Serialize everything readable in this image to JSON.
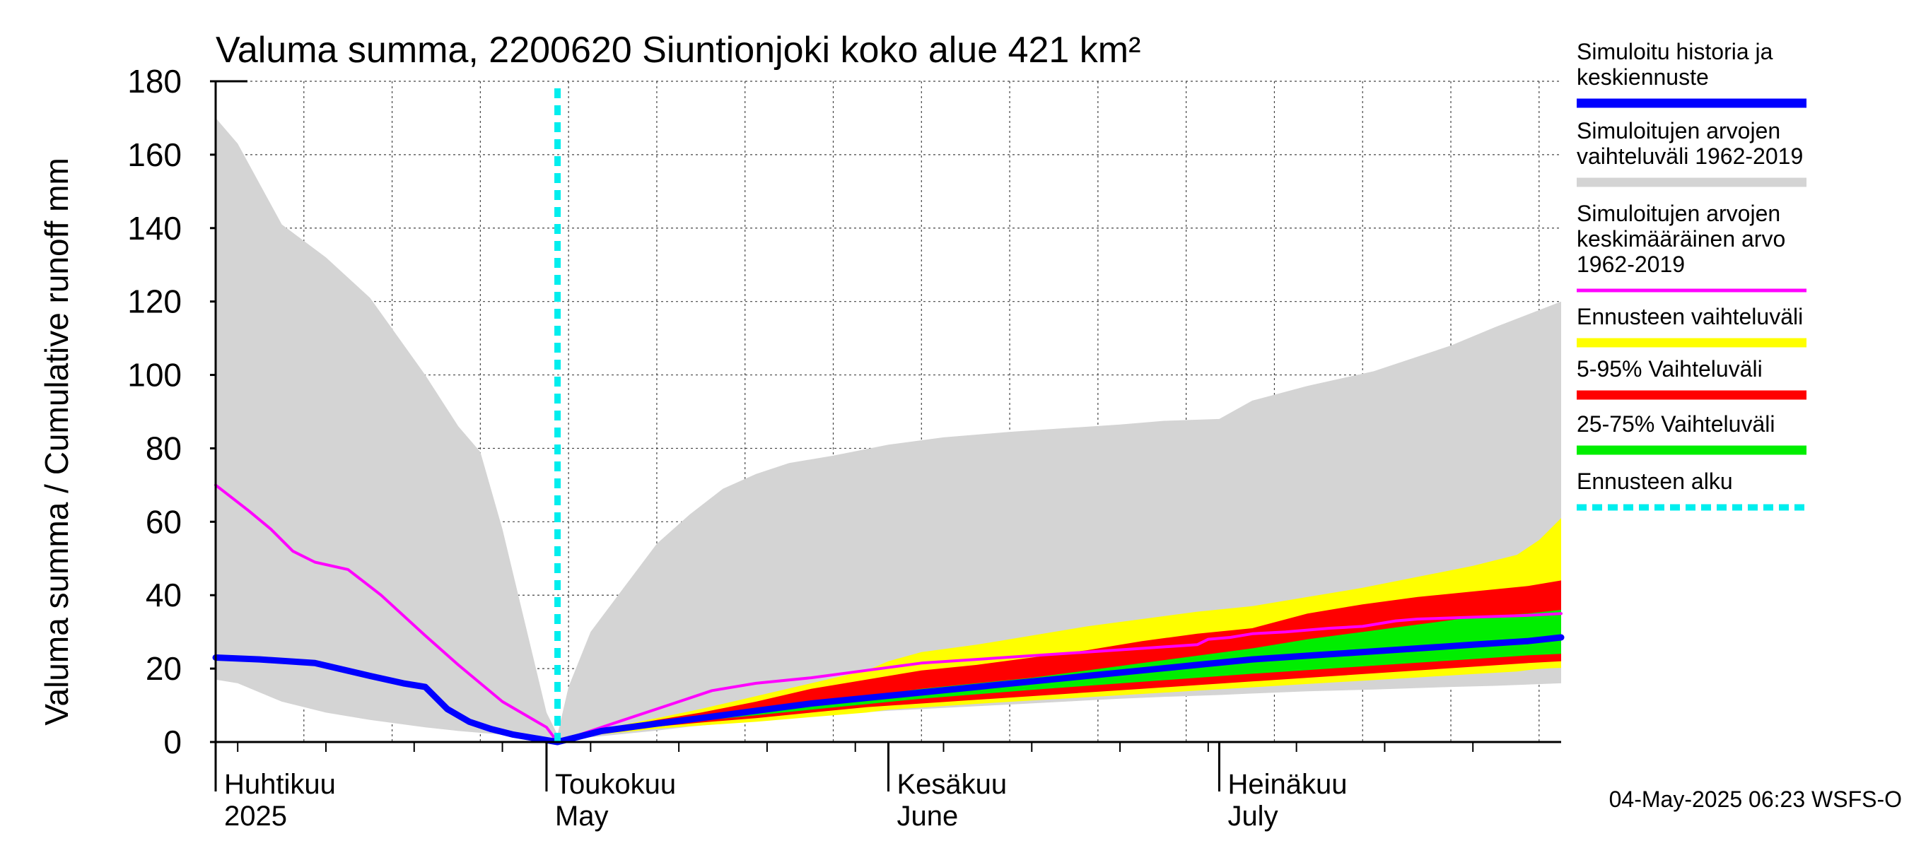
{
  "chart_data": {
    "type": "area",
    "title": "Valuma summa, 2200620 Siuntionjoki koko alue 421 km²",
    "ylabel": "Valuma summa / Cumulative runoff    mm",
    "ylim": [
      0,
      180
    ],
    "yticks": [
      0,
      20,
      40,
      60,
      80,
      100,
      120,
      140,
      160,
      180
    ],
    "x_unit": "day of year 2025",
    "xlim": [
      91,
      213
    ],
    "forecast_start": 122,
    "month_labels": [
      {
        "day": 91,
        "line1": "Huhtikuu",
        "line2": "2025"
      },
      {
        "day": 121,
        "line1": "Toukokuu",
        "line2": "May"
      },
      {
        "day": 152,
        "line1": "Kesäkuu",
        "line2": "June"
      },
      {
        "day": 182,
        "line1": "Heinäkuu",
        "line2": "July"
      }
    ],
    "colors": {
      "history": "#0000ff",
      "range": "#d4d4d4",
      "mean": "#ff00ff",
      "forecast_range": "#ffff00",
      "p5_95": "#ff0000",
      "p25_75": "#00ee00",
      "forecast_start": "#00eeee"
    },
    "bands": [
      {
        "name": "Simuloitujen arvojen vaihteluväli 1962-2019",
        "color_key": "range",
        "x": [
          91,
          93,
          97,
          101,
          105,
          110,
          113,
          115,
          117,
          119,
          121,
          122,
          123,
          125,
          128,
          131,
          134,
          137,
          140,
          143,
          147,
          152,
          157,
          163,
          168,
          173,
          177,
          182,
          185,
          190,
          196,
          203,
          207,
          213
        ],
        "upper": [
          170,
          163,
          141,
          132,
          121,
          100,
          86,
          79,
          58,
          33,
          8,
          2,
          15,
          30,
          42,
          54,
          62,
          69,
          73,
          76,
          78,
          81,
          83,
          84.5,
          85.5,
          86.5,
          87.5,
          88,
          93,
          97,
          101,
          108,
          113,
          120
        ],
        "lower": [
          17,
          16,
          11,
          8,
          6,
          4,
          3,
          2.5,
          2,
          1.2,
          0.5,
          0.2,
          0.7,
          1.3,
          2.2,
          3.1,
          4.2,
          5,
          5.8,
          6.6,
          7.5,
          8.5,
          9.3,
          10.2,
          11,
          11.8,
          12.3,
          12.8,
          13.2,
          13.8,
          14.3,
          15,
          15.3,
          16
        ]
      },
      {
        "name": "Ennusteen vaihteluväli",
        "color_key": "forecast_range",
        "x": [
          122,
          126,
          131,
          135,
          140,
          145,
          150,
          152,
          155,
          160,
          165,
          170,
          175,
          180,
          185,
          190,
          195,
          200,
          205,
          209,
          210,
          211,
          212,
          213
        ],
        "upper": [
          0.6,
          3.5,
          6.5,
          9,
          12.5,
          16,
          19.5,
          22,
          24.5,
          26.5,
          29,
          31.5,
          33.5,
          35.5,
          37,
          39.5,
          42,
          45,
          48,
          51,
          53,
          55,
          58,
          61
        ],
        "lower": [
          0,
          2.1,
          3.6,
          4.5,
          5.5,
          6.8,
          8,
          8.8,
          9.4,
          10.4,
          11.3,
          12.2,
          13.1,
          14,
          14.9,
          15.8,
          16.7,
          17.6,
          18.5,
          19.2,
          19.6,
          19.9,
          20.1,
          20.2
        ]
      },
      {
        "name": "5-95% Vaihteluväli",
        "color_key": "p5_95",
        "x": [
          122,
          126,
          131,
          135,
          140,
          145,
          150,
          155,
          160,
          165,
          170,
          175,
          180,
          185,
          190,
          195,
          200,
          205,
          210,
          213
        ],
        "upper": [
          0.3,
          3.3,
          6,
          8,
          11,
          14.5,
          17,
          19.5,
          21,
          23,
          25,
          27.5,
          29.5,
          31,
          35,
          37.5,
          39.5,
          41,
          42.5,
          44
        ],
        "lower": [
          0.05,
          2.5,
          4.2,
          5.3,
          6.5,
          8,
          9.5,
          10.5,
          11.5,
          12.5,
          13.5,
          14.5,
          15.5,
          16.5,
          17.5,
          18.5,
          19.5,
          20.5,
          21.5,
          22
        ]
      },
      {
        "name": "25-75% Vaihteluväli",
        "color_key": "p25_75",
        "x": [
          122,
          126,
          131,
          135,
          140,
          145,
          150,
          155,
          160,
          165,
          170,
          175,
          180,
          185,
          190,
          195,
          200,
          205,
          210,
          213
        ],
        "upper": [
          0.2,
          2.8,
          5,
          6.5,
          8.5,
          10.5,
          12.5,
          14.5,
          16,
          17.5,
          19.5,
          21.5,
          23.5,
          25.5,
          28,
          30,
          32,
          34,
          35,
          36
        ],
        "lower": [
          0.1,
          2.6,
          4.5,
          5.8,
          7.3,
          8.8,
          10.3,
          11.8,
          13,
          14.2,
          15.3,
          16.4,
          17.5,
          18.6,
          19.6,
          20.6,
          21.6,
          22.6,
          23.6,
          24
        ]
      }
    ],
    "series": [
      {
        "name": "Simuloitujen arvojen keskimääräinen arvo 1962-2019",
        "color_key": "mean",
        "width": 4,
        "x": [
          91,
          94,
          96,
          98,
          100,
          103,
          106,
          110,
          113,
          117,
          121,
          122,
          124,
          128,
          132,
          136,
          140,
          145,
          150,
          155,
          160,
          165,
          170,
          175,
          180,
          181,
          183,
          185,
          188,
          192,
          195,
          198,
          200,
          205,
          210,
          213
        ],
        "values": [
          70,
          63,
          58,
          52,
          49,
          47,
          40,
          29,
          21,
          11,
          4,
          0,
          2,
          6,
          10,
          14,
          16,
          17.5,
          19.5,
          21.5,
          22.5,
          23.5,
          24.5,
          25.5,
          26.5,
          28,
          28.5,
          29.5,
          30,
          31,
          31.5,
          33,
          33.5,
          34,
          34.5,
          35
        ]
      },
      {
        "name": "Simuloitu historia ja keskiennuste",
        "color_key": "history",
        "width": 9,
        "x": [
          91,
          95,
          100,
          105,
          108,
          110,
          112,
          114,
          116,
          118,
          120,
          122,
          126,
          131,
          135,
          140,
          145,
          150,
          155,
          160,
          165,
          170,
          175,
          180,
          185,
          190,
          195,
          200,
          205,
          210,
          213
        ],
        "values": [
          23,
          22.5,
          21.5,
          18,
          16,
          15,
          9,
          5.5,
          3.5,
          2,
          1,
          0,
          3,
          5,
          6.5,
          8.5,
          10.5,
          12,
          13.5,
          15,
          16.5,
          18,
          19.5,
          21,
          22.5,
          23.5,
          24.5,
          25.5,
          26.5,
          27.5,
          28.5
        ]
      }
    ]
  },
  "legend": [
    {
      "lines": [
        "Simuloitu historia ja",
        "keskiennuste"
      ],
      "color": "#0000ff",
      "style": "solid"
    },
    {
      "lines": [
        "Simuloitujen arvojen",
        "vaihteluväli 1962-2019"
      ],
      "color": "#d4d4d4",
      "style": "solid"
    },
    {
      "lines": [
        "Simuloitujen arvojen",
        "keskimääräinen arvo",
        "   1962-2019"
      ],
      "color": "#ff00ff",
      "style": "thin"
    },
    {
      "lines": [
        "Ennusteen vaihteluväli"
      ],
      "color": "#ffff00",
      "style": "solid"
    },
    {
      "lines": [
        "5-95% Vaihteluväli"
      ],
      "color": "#ff0000",
      "style": "solid"
    },
    {
      "lines": [
        "25-75% Vaihteluväli"
      ],
      "color": "#00ee00",
      "style": "solid"
    },
    {
      "lines": [
        "Ennusteen alku"
      ],
      "color": "#00eeee",
      "style": "dashed"
    }
  ],
  "footer": "04-May-2025 06:23 WSFS-O"
}
